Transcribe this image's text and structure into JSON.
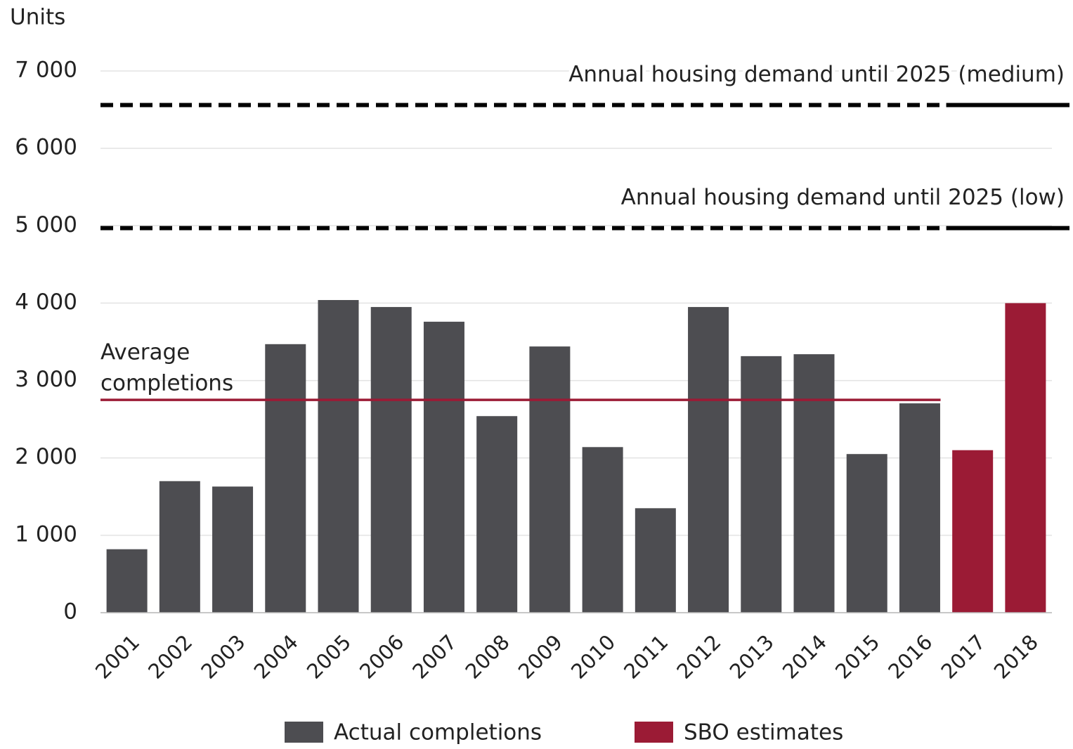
{
  "chart_data": {
    "type": "bar",
    "y_axis_label": "Units",
    "categories": [
      "2001",
      "2002",
      "2003",
      "2004",
      "2005",
      "2006",
      "2007",
      "2008",
      "2009",
      "2010",
      "2011",
      "2012",
      "2013",
      "2014",
      "2015",
      "2016",
      "2017",
      "2018"
    ],
    "series": [
      {
        "name": "Actual completions",
        "color": "#4d4d51",
        "values": [
          820,
          1700,
          1630,
          3470,
          4040,
          3950,
          3760,
          2540,
          3440,
          2140,
          1350,
          3950,
          3315,
          3340,
          2050,
          2705,
          null,
          null
        ]
      },
      {
        "name": "SBO estimates",
        "color": "#9b1b35",
        "values": [
          null,
          null,
          null,
          null,
          null,
          null,
          null,
          null,
          null,
          null,
          null,
          null,
          null,
          null,
          null,
          null,
          2100,
          4000
        ]
      }
    ],
    "ylim": [
      0,
      7000
    ],
    "yticks": [
      {
        "value": 0,
        "label": "0"
      },
      {
        "value": 1000,
        "label": "1 000"
      },
      {
        "value": 2000,
        "label": "2 000"
      },
      {
        "value": 3000,
        "label": "3 000"
      },
      {
        "value": 4000,
        "label": "4 000"
      },
      {
        "value": 5000,
        "label": "5 000"
      },
      {
        "value": 6000,
        "label": "6 000"
      },
      {
        "value": 7000,
        "label": "7 000"
      }
    ],
    "grid": true,
    "reference_lines": [
      {
        "label": "Annual housing demand until 2025 (medium)",
        "value": 6560
      },
      {
        "label": "Annual housing demand until 2025 (low)",
        "value": 4970
      }
    ],
    "average_line": {
      "label_lines": [
        "Average",
        "completions"
      ],
      "value": 2750,
      "color": "#9b1b35"
    }
  }
}
